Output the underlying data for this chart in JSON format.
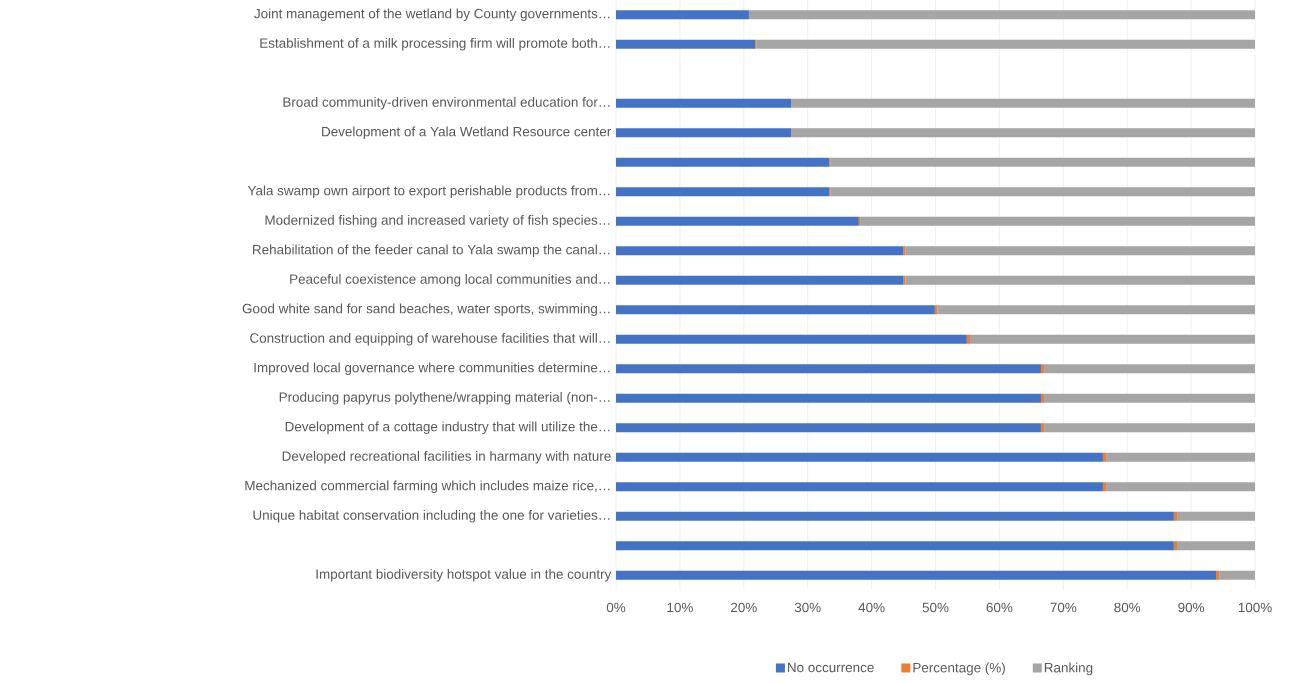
{
  "chart_data": {
    "type": "bar",
    "orientation": "horizontal",
    "stacked": true,
    "grid": "x",
    "legend": "bottom",
    "categories": [
      "Joint management of the wetland by County governments…",
      "Establishment of a milk processing firm will promote both…",
      null,
      "Broad community-driven environmental education for…",
      "Development of a Yala Wetland Resource center",
      null,
      "Yala swamp own airport to export perishable products from…",
      "Modernized fishing and increased variety of fish species…",
      "Rehabilitation of the feeder canal to Yala swamp the canal…",
      "Peaceful coexistence among local communities and…",
      "Good white sand for sand beaches, water sports, swimming…",
      "Construction and equipping of warehouse facilities that will…",
      "Improved local governance where communities determine…",
      "Producing papyrus polythene/wrapping material (non-…",
      "Development of a cottage industry that will utilize the…",
      "Developed recreational facilities in harmany with nature",
      "Mechanized commercial farming which includes maize rice,…",
      "Unique habitat conservation including the one for varieties…",
      null,
      "Important biodiversity hotspot value in the country"
    ],
    "series": [
      {
        "name": "No occurrence",
        "color": "#4472c4",
        "values": [
          20.8,
          21.8,
          null,
          27.4,
          27.4,
          33.4,
          33.4,
          38.0,
          45.0,
          45.0,
          49.9,
          54.9,
          66.5,
          66.5,
          66.5,
          76.2,
          76.2,
          87.3,
          87.3,
          93.9
        ]
      },
      {
        "name": "Percentage (%)",
        "color": "#ed7d31",
        "values": [
          0,
          0.2,
          null,
          0,
          0,
          0.2,
          0.2,
          0.2,
          0.3,
          0.3,
          0.4,
          0.5,
          0.5,
          0.5,
          0.5,
          0.5,
          0.5,
          0.5,
          0.5,
          0.5
        ]
      },
      {
        "name": "Ranking",
        "color": "#a5a5a5",
        "values": [
          79.2,
          78.0,
          null,
          72.6,
          72.6,
          66.4,
          66.4,
          61.8,
          54.7,
          54.7,
          49.7,
          44.6,
          33.0,
          33.0,
          33.0,
          23.3,
          23.3,
          12.2,
          12.2,
          5.6
        ]
      }
    ],
    "xlim": [
      0,
      100
    ],
    "xticks": [
      {
        "value": 0,
        "label": "0%"
      },
      {
        "value": 10,
        "label": "10%"
      },
      {
        "value": 20,
        "label": "20%"
      },
      {
        "value": 30,
        "label": "30%"
      },
      {
        "value": 40,
        "label": "40%"
      },
      {
        "value": 50,
        "label": "50%"
      },
      {
        "value": 60,
        "label": "60%"
      },
      {
        "value": 70,
        "label": "70%"
      },
      {
        "value": 80,
        "label": "80%"
      },
      {
        "value": 90,
        "label": "90%"
      },
      {
        "value": 100,
        "label": "100%"
      }
    ]
  }
}
